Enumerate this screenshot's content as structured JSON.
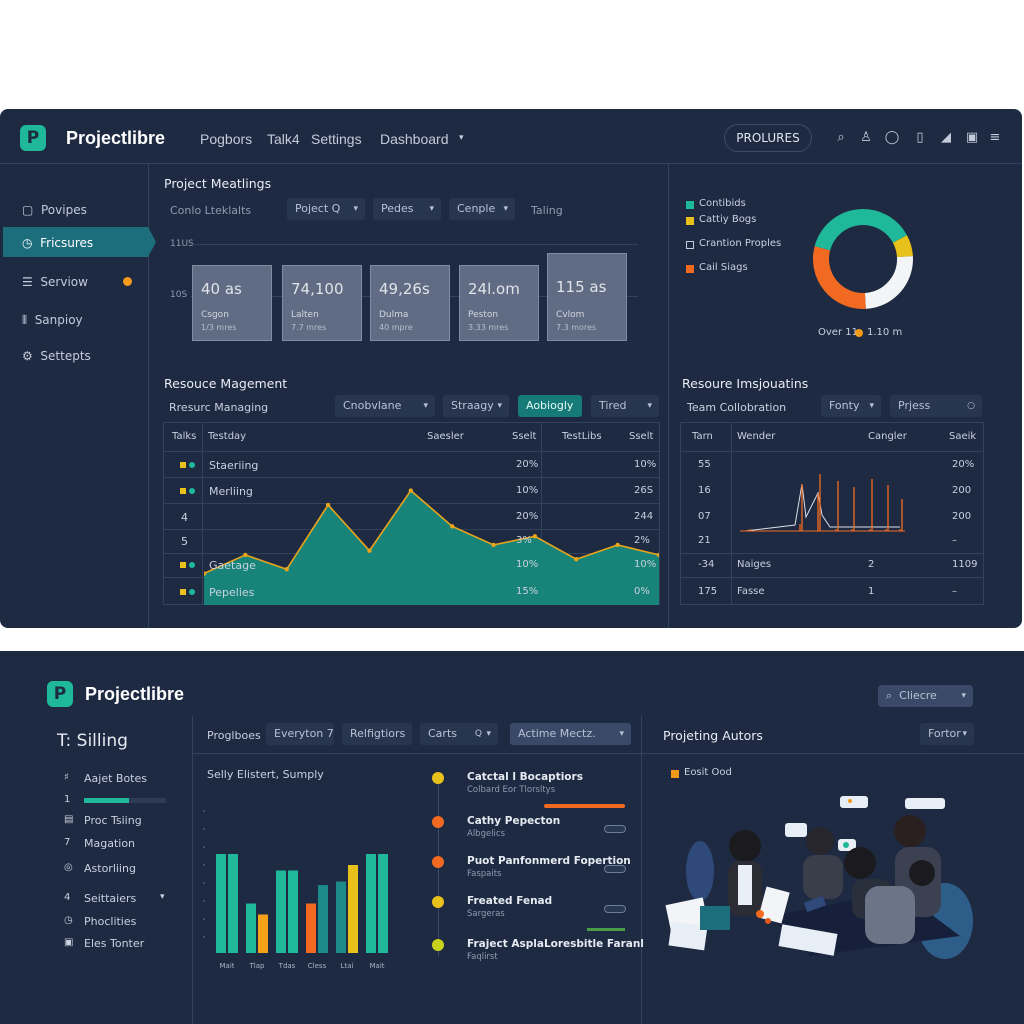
{
  "top": {
    "app_name": "Projectlibre",
    "nav": [
      "Pogbors",
      "Talk4",
      "Settings",
      "Dashboard"
    ],
    "header_pill": "PROLURES",
    "header_icons": [
      "search-icon",
      "user-icon",
      "shield-icon",
      "document-icon",
      "chart-icon",
      "mail-icon",
      "menu-icon"
    ],
    "sidebar": [
      {
        "label": "Povipes",
        "icon": "document-icon"
      },
      {
        "label": "Fricsures",
        "icon": "clock-icon",
        "active": true
      },
      {
        "label": "Serviow",
        "icon": "list-icon",
        "badge_color": "#f59a1b"
      },
      {
        "label": "Sanpioy",
        "icon": "tools-icon"
      },
      {
        "label": "Settepts",
        "icon": "gear-icon"
      }
    ],
    "meetings": {
      "title": "Project Meatlings",
      "filter_label": "Conlo Lteklalts",
      "filters": [
        "Poject Q",
        "Pedes",
        "Cenple",
        "Taling"
      ],
      "y_labels": [
        "11US",
        "10S"
      ],
      "cards": [
        {
          "value": "40 as",
          "line1": "Csgon",
          "line2": "1/3 mres"
        },
        {
          "value": "74,100",
          "line1": "Lalten",
          "line2": "7.7 mres"
        },
        {
          "value": "49,26s",
          "line1": "Dulma",
          "line2": "40 mpre"
        },
        {
          "value": "24l.om",
          "line1": "Peston",
          "line2": "3.33 mres"
        },
        {
          "value": "115 as",
          "line1": "Cvlom",
          "line2": "7.3 mores"
        }
      ]
    },
    "donut": {
      "legend": [
        {
          "label": "Contibids",
          "color": "#1fb89a"
        },
        {
          "label": "Cattiy Bogs",
          "color": "#e8c21a"
        },
        {
          "label": "Crantion Proples",
          "color": "#c3ccdb"
        },
        {
          "label": "Cail Siags",
          "color": "#f26a21"
        }
      ],
      "caption_left": "Over 11",
      "caption_right": "1.10 m",
      "caption_dot_color": "#f59a1b"
    },
    "resource": {
      "title": "Resouce Magement",
      "filter_label": "Rresurc Managing",
      "filters": [
        "Cnobvlane",
        "Straagy",
        "Aobiogly",
        "Tired"
      ],
      "columns": [
        "Talks",
        "Testday",
        "Saesler",
        "Sselt",
        "TestLibs",
        "Sselt"
      ],
      "rows": [
        {
          "num": "",
          "label": "Staeriing",
          "p1": "20%",
          "p2": "10%"
        },
        {
          "num": "",
          "label": "Merliing",
          "p1": "10%",
          "p2": "26S"
        },
        {
          "num": "4",
          "label": "",
          "p1": "20%",
          "p2": "244"
        },
        {
          "num": "5",
          "label": "",
          "p1": "3%",
          "p2": "2%"
        },
        {
          "num": "",
          "label": "Gaetage",
          "p1": "10%",
          "p2": "10%"
        },
        {
          "num": "",
          "label": "Pepelies",
          "p1": "15%",
          "p2": "0%"
        }
      ],
      "line_colors": {
        "line": "#e8a51b",
        "fill": "#178e80"
      }
    },
    "insights": {
      "title": "Resoure Imsjouatins",
      "filter_label": "Team Collobration",
      "filters": [
        "Fonty",
        "Prjess"
      ],
      "columns": [
        "Tarn",
        "Wender",
        "Cangler",
        "Saeik"
      ],
      "rows": [
        {
          "a": "55",
          "b": "",
          "c": "",
          "d": "20%"
        },
        {
          "a": "16",
          "b": "",
          "c": "",
          "d": "200"
        },
        {
          "a": "07",
          "b": "",
          "c": "",
          "d": "200"
        },
        {
          "a": "21",
          "b": "",
          "c": "",
          "d": "–"
        },
        {
          "a": "-34",
          "b": "Naiges",
          "c": "2",
          "d": "1109"
        },
        {
          "a": "175",
          "b": "Fasse",
          "c": "1",
          "d": "–"
        }
      ]
    }
  },
  "bottom": {
    "app_name": "Projectlibre",
    "search_chip": "Cliecre",
    "page_title": "T: Silling",
    "sidebar": [
      {
        "num": "♯",
        "label": "Aajet Botes"
      },
      {
        "num": "1",
        "label": "",
        "progress": 0.55
      },
      {
        "num": "▤",
        "label": "Proc Tsiing"
      },
      {
        "num": "7",
        "label": "Magation"
      },
      {
        "num": "◎",
        "label": "Astorliing"
      },
      {
        "num": "4",
        "label": "Seittaiers"
      },
      {
        "num": "◷",
        "label": "Phoclities"
      },
      {
        "num": "▣",
        "label": "Eles Tonter"
      }
    ],
    "filter_label": "Proglboes",
    "filters": [
      "Everyton 7",
      "Relfigtiors",
      "Carts",
      "Actime Mectz."
    ],
    "bar_title": "Selly Elistert, Sumply",
    "timeline": [
      {
        "title": "Catctal l Bocaptiors",
        "sub": "Colbard Eor Tlorsltys",
        "dot": "#e8c21a",
        "bar": 0.7
      },
      {
        "title": "Cathy Pepecton",
        "sub": "Albgelics",
        "dot": "#f26a21",
        "bar": 0
      },
      {
        "title": "Puot Panfonmerd Fopertion",
        "sub": "Faspaits",
        "dot": "#f26a21",
        "bar": 0
      },
      {
        "title": "Freated Fenad",
        "sub": "Sargeras",
        "dot": "#e8c21a",
        "bar": 0
      },
      {
        "title": "Fraject AsplaLoresbitle Faranl",
        "sub": "Faqlirst",
        "dot": "#c8d21a",
        "bar": 0
      }
    ],
    "people": {
      "title": "Projeting Autors",
      "chip": "Fortor",
      "legend": "Eosit Ood",
      "legend_color": "#f59a1b"
    }
  },
  "chart_data": [
    {
      "type": "line",
      "title": "",
      "xlabel": "",
      "ylabel": "",
      "series": [
        {
          "values": [
            22,
            35,
            25,
            70,
            38,
            80,
            55,
            42,
            48,
            32,
            42,
            35
          ]
        }
      ]
    },
    {
      "type": "pie",
      "title": "",
      "series": [
        {
          "values": [
            38,
            7,
            25,
            30
          ]
        }
      ],
      "colors": [
        "#1fb89a",
        "#e8c21a",
        "#f3f4f6",
        "#f26a21"
      ]
    },
    {
      "type": "bar",
      "title": "Selly Elistert, Sumply",
      "categories": [
        "Mait",
        "Tlap",
        "Tdas",
        "Cless",
        "Ltai",
        "Mait"
      ],
      "series": [
        {
          "values": [
            0.9,
            0.45,
            0.75,
            0.45,
            0.65,
            0.9
          ]
        },
        {
          "values": [
            0,
            0.35,
            0,
            0.35,
            0,
            0
          ]
        }
      ]
    }
  ]
}
